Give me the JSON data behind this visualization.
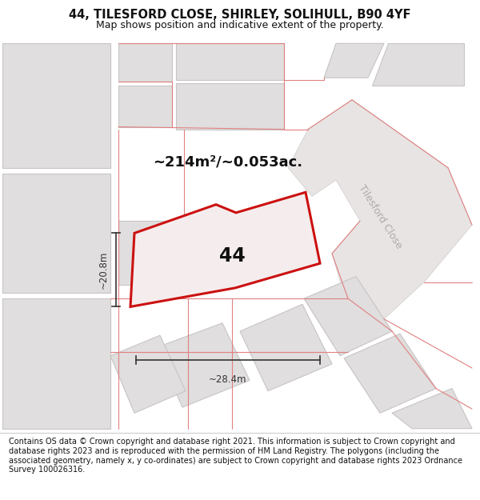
{
  "title_line1": "44, TILESFORD CLOSE, SHIRLEY, SOLIHULL, B90 4YF",
  "title_line2": "Map shows position and indicative extent of the property.",
  "footer_text": "Contains OS data © Crown copyright and database right 2021. This information is subject to Crown copyright and database rights 2023 and is reproduced with the permission of HM Land Registry. The polygons (including the associated geometry, namely x, y co-ordinates) are subject to Crown copyright and database rights 2023 Ordnance Survey 100026316.",
  "area_label": "~214m²/~0.053ac.",
  "number_label": "44",
  "dim_width": "~28.4m",
  "dim_height": "~20.8m",
  "road_label": "Tilesford Close",
  "bg_color": "#efefef",
  "building_fill": "#e0dede",
  "building_edge": "#c8c4c4",
  "road_fill": "#e8e4e4",
  "pink_line": "#e08080",
  "plot_fill": "#f5eded",
  "plot_edge": "#cc1111",
  "dim_color": "#333333",
  "title_color": "#111111",
  "footer_color": "#111111",
  "road_text_color": "#b0aaaa",
  "area_fontsize": 13,
  "number_fontsize": 17,
  "title1_fontsize": 10.5,
  "title2_fontsize": 9,
  "footer_fontsize": 7.0,
  "dim_fontsize": 8.5
}
